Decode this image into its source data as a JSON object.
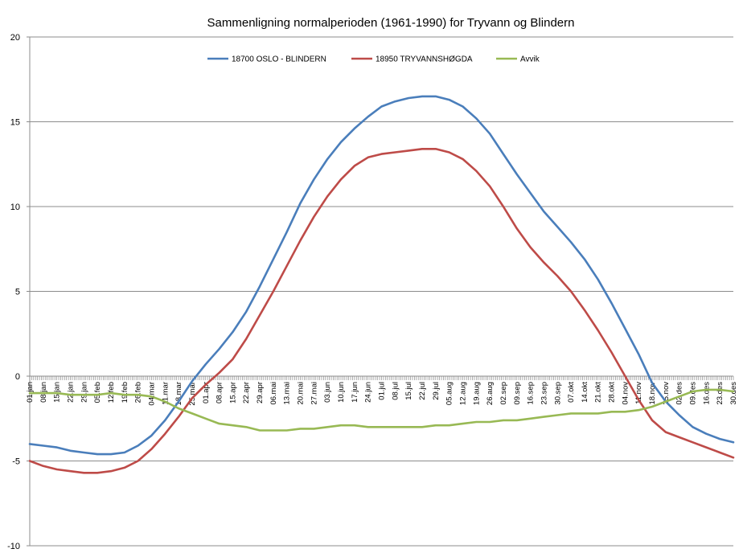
{
  "chart_data": {
    "type": "line",
    "title": "Sammenligning normalperioden (1961-1990) for Tryvann og Blindern",
    "xlabel": "",
    "ylabel": "",
    "ylim": [
      -10,
      20
    ],
    "yticks": [
      -10,
      -5,
      0,
      5,
      10,
      15,
      20
    ],
    "grid": true,
    "legend_position": "top",
    "x_tick_labels": [
      "01.jan",
      "08.jan",
      "15.jan",
      "22.jan",
      "29.jan",
      "05.feb",
      "12.feb",
      "19.feb",
      "26.feb",
      "04.mar",
      "11.mar",
      "18.mar",
      "25.mar",
      "01.apr",
      "08.apr",
      "15.apr",
      "22.apr",
      "29.apr",
      "06.mai",
      "13.mai",
      "20.mai",
      "27.mai",
      "03.jun",
      "10.jun",
      "17.jun",
      "24.jun",
      "01.jul",
      "08.jul",
      "15.jul",
      "22.jul",
      "29.jul",
      "05.aug",
      "12.aug",
      "19.aug",
      "26.aug",
      "02.sep",
      "09.sep",
      "16.sep",
      "23.sep",
      "30.sep",
      "07.okt",
      "14.okt",
      "21.okt",
      "28.okt",
      "04.nov",
      "11.nov",
      "18.nov",
      "25.nov",
      "02.des",
      "09.des",
      "16.des",
      "23.des",
      "30.des"
    ],
    "series": [
      {
        "name": "18700 OSLO - BLINDERN",
        "color": "#4a7ebb",
        "values": [
          -4.0,
          -4.1,
          -4.2,
          -4.4,
          -4.5,
          -4.6,
          -4.6,
          -4.5,
          -4.1,
          -3.5,
          -2.6,
          -1.5,
          -0.3,
          0.7,
          1.6,
          2.6,
          3.8,
          5.3,
          6.9,
          8.5,
          10.2,
          11.6,
          12.8,
          13.8,
          14.6,
          15.3,
          15.9,
          16.2,
          16.4,
          16.5,
          16.5,
          16.3,
          15.9,
          15.2,
          14.3,
          13.1,
          11.9,
          10.8,
          9.7,
          8.8,
          7.9,
          6.9,
          5.7,
          4.3,
          2.8,
          1.3,
          -0.4,
          -1.5,
          -2.3,
          -3.0,
          -3.4,
          -3.7,
          -3.9
        ]
      },
      {
        "name": "18950 TRYVANNSHØGDA",
        "color": "#be4b48",
        "values": [
          -5.0,
          -5.3,
          -5.5,
          -5.6,
          -5.7,
          -5.7,
          -5.6,
          -5.4,
          -5.0,
          -4.3,
          -3.4,
          -2.4,
          -1.3,
          -0.5,
          0.2,
          1.0,
          2.2,
          3.6,
          5.0,
          6.5,
          8.0,
          9.4,
          10.6,
          11.6,
          12.4,
          12.9,
          13.1,
          13.2,
          13.3,
          13.4,
          13.4,
          13.2,
          12.8,
          12.1,
          11.2,
          10.0,
          8.7,
          7.6,
          6.7,
          5.9,
          5.0,
          3.9,
          2.7,
          1.4,
          0.0,
          -1.4,
          -2.6,
          -3.3,
          -3.6,
          -3.9,
          -4.2,
          -4.5,
          -4.8
        ]
      },
      {
        "name": "Avvik",
        "color": "#98b954",
        "values": [
          -1.0,
          -1.0,
          -1.0,
          -1.1,
          -1.1,
          -1.1,
          -1.0,
          -1.1,
          -1.1,
          -1.2,
          -1.5,
          -1.9,
          -2.2,
          -2.5,
          -2.8,
          -2.9,
          -3.0,
          -3.2,
          -3.2,
          -3.2,
          -3.1,
          -3.1,
          -3.0,
          -2.9,
          -2.9,
          -3.0,
          -3.0,
          -3.0,
          -3.0,
          -3.0,
          -2.9,
          -2.9,
          -2.8,
          -2.7,
          -2.7,
          -2.6,
          -2.6,
          -2.5,
          -2.4,
          -2.3,
          -2.2,
          -2.2,
          -2.2,
          -2.1,
          -2.1,
          -2.0,
          -1.8,
          -1.5,
          -1.2,
          -0.9,
          -0.8,
          -0.8,
          -0.9
        ]
      }
    ]
  }
}
